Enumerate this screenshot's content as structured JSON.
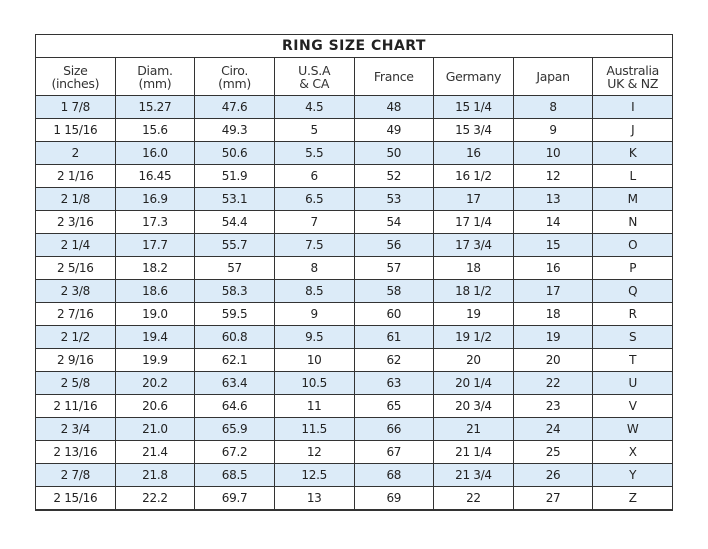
{
  "title": "RING SIZE CHART",
  "shade_color": "#dcebf8",
  "columns": [
    {
      "l1": "Size",
      "l2": "(inches)"
    },
    {
      "l1": "Diam.",
      "l2": "(mm)"
    },
    {
      "l1": "Ciro.",
      "l2": "(mm)"
    },
    {
      "l1": "U.S.A",
      "l2": "& CA"
    },
    {
      "l1": "France",
      "l2": ""
    },
    {
      "l1": "Germany",
      "l2": ""
    },
    {
      "l1": "Japan",
      "l2": ""
    },
    {
      "l1": "Australia",
      "l2": "UK & NZ"
    }
  ],
  "rows": [
    [
      "1 7/8",
      "15.27",
      "47.6",
      "4.5",
      "48",
      "15 1/4",
      "8",
      "I"
    ],
    [
      "1 15/16",
      "15.6",
      "49.3",
      "5",
      "49",
      "15 3/4",
      "9",
      "J"
    ],
    [
      "2",
      "16.0",
      "50.6",
      "5.5",
      "50",
      "16",
      "10",
      "K"
    ],
    [
      "2 1/16",
      "16.45",
      "51.9",
      "6",
      "52",
      "16 1/2",
      "12",
      "L"
    ],
    [
      "2 1/8",
      "16.9",
      "53.1",
      "6.5",
      "53",
      "17",
      "13",
      "M"
    ],
    [
      "2 3/16",
      "17.3",
      "54.4",
      "7",
      "54",
      "17 1/4",
      "14",
      "N"
    ],
    [
      "2 1/4",
      "17.7",
      "55.7",
      "7.5",
      "56",
      "17 3/4",
      "15",
      "O"
    ],
    [
      "2 5/16",
      "18.2",
      "57",
      "8",
      "57",
      "18",
      "16",
      "P"
    ],
    [
      "2 3/8",
      "18.6",
      "58.3",
      "8.5",
      "58",
      "18 1/2",
      "17",
      "Q"
    ],
    [
      "2 7/16",
      "19.0",
      "59.5",
      "9",
      "60",
      "19",
      "18",
      "R"
    ],
    [
      "2 1/2",
      "19.4",
      "60.8",
      "9.5",
      "61",
      "19 1/2",
      "19",
      "S"
    ],
    [
      "2 9/16",
      "19.9",
      "62.1",
      "10",
      "62",
      "20",
      "20",
      "T"
    ],
    [
      "2 5/8",
      "20.2",
      "63.4",
      "10.5",
      "63",
      "20 1/4",
      "22",
      "U"
    ],
    [
      "2 11/16",
      "20.6",
      "64.6",
      "11",
      "65",
      "20 3/4",
      "23",
      "V"
    ],
    [
      "2 3/4",
      "21.0",
      "65.9",
      "11.5",
      "66",
      "21",
      "24",
      "W"
    ],
    [
      "2 13/16",
      "21.4",
      "67.2",
      "12",
      "67",
      "21 1/4",
      "25",
      "X"
    ],
    [
      "2 7/8",
      "21.8",
      "68.5",
      "12.5",
      "68",
      "21 3/4",
      "26",
      "Y"
    ],
    [
      "2 15/16",
      "22.2",
      "69.7",
      "13",
      "69",
      "22",
      "27",
      "Z"
    ]
  ]
}
